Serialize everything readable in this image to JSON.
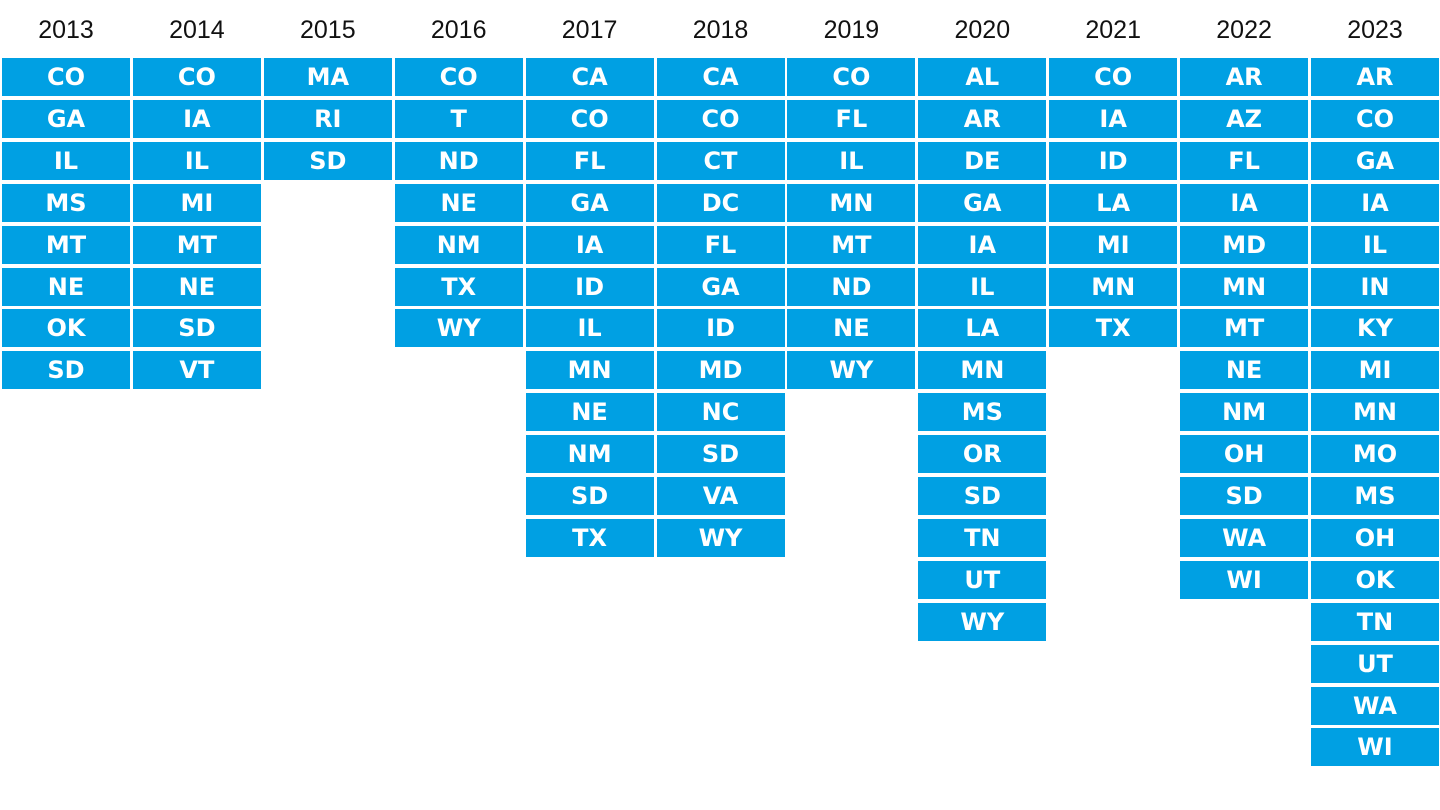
{
  "chart_data": {
    "type": "table",
    "colors": {
      "cell_fill": "#00a0e3",
      "cell_text": "#ffffff",
      "header_text": "#111111",
      "background": "#ffffff"
    },
    "columns": [
      {
        "year": "2013",
        "states": [
          "CO",
          "GA",
          "IL",
          "MS",
          "MT",
          "NE",
          "OK",
          "SD"
        ]
      },
      {
        "year": "2014",
        "states": [
          "CO",
          "IA",
          "IL",
          "MI",
          "MT",
          "NE",
          "SD",
          "VT"
        ]
      },
      {
        "year": "2015",
        "states": [
          "MA",
          "RI",
          "SD"
        ]
      },
      {
        "year": "2016",
        "states": [
          "CO",
          "T",
          "ND",
          "NE",
          "NM",
          "TX",
          "WY"
        ]
      },
      {
        "year": "2017",
        "states": [
          "CA",
          "CO",
          "FL",
          "GA",
          "IA",
          "ID",
          "IL",
          "MN",
          "NE",
          "NM",
          "SD",
          "TX"
        ]
      },
      {
        "year": "2018",
        "states": [
          "CA",
          "CO",
          "CT",
          "DC",
          "FL",
          "GA",
          "ID",
          "MD",
          "NC",
          "SD",
          "VA",
          "WY"
        ]
      },
      {
        "year": "2019",
        "states": [
          "CO",
          "FL",
          "IL",
          "MN",
          "MT",
          "ND",
          "NE",
          "WY"
        ]
      },
      {
        "year": "2020",
        "states": [
          "AL",
          "AR",
          "DE",
          "GA",
          "IA",
          "IL",
          "LA",
          "MN",
          "MS",
          "OR",
          "SD",
          "TN",
          "UT",
          "WY"
        ]
      },
      {
        "year": "2021",
        "states": [
          "CO",
          "IA",
          "ID",
          "LA",
          "MI",
          "MN",
          "TX"
        ]
      },
      {
        "year": "2022",
        "states": [
          "AR",
          "AZ",
          "FL",
          "IA",
          "MD",
          "MN",
          "MT",
          "NE",
          "NM",
          "OH",
          "SD",
          "WA",
          "WI"
        ]
      },
      {
        "year": "2023",
        "states": [
          "AR",
          "CO",
          "GA",
          "IA",
          "IL",
          "IN",
          "KY",
          "MI",
          "MN",
          "MO",
          "MS",
          "OH",
          "OK",
          "TN",
          "UT",
          "WA",
          "WI"
        ]
      }
    ]
  }
}
